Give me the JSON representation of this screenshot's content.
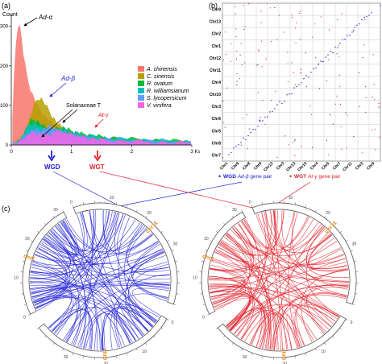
{
  "panels": {
    "a": "(a)",
    "b": "(b)",
    "c": "(c)"
  },
  "chart_data": [
    {
      "type": "area",
      "panel": "(a)",
      "ylabel": "Count",
      "xlabel": "Ks",
      "xlim": [
        0,
        3
      ],
      "ylim": [
        0,
        330
      ],
      "x_ticks": [
        0,
        1,
        2,
        3
      ],
      "y_ticks": [
        0,
        100,
        200,
        300
      ],
      "grid": false,
      "legend_position": "right",
      "x": [
        0.02,
        0.05,
        0.08,
        0.11,
        0.14,
        0.17,
        0.2,
        0.23,
        0.26,
        0.29,
        0.32,
        0.35,
        0.38,
        0.41,
        0.44,
        0.47,
        0.5,
        0.53,
        0.56,
        0.59,
        0.62,
        0.65,
        0.68,
        0.71,
        0.74,
        0.77,
        0.8,
        0.83,
        0.86,
        0.89,
        0.92,
        0.95,
        0.98,
        1.01,
        1.04,
        1.07,
        1.1,
        1.13,
        1.16,
        1.19,
        1.22,
        1.25,
        1.3,
        1.35,
        1.4,
        1.45,
        1.5,
        1.55,
        1.6,
        1.7,
        1.8,
        1.9,
        2.0,
        2.1,
        2.2,
        2.3,
        2.4,
        2.5,
        2.6,
        2.7,
        2.8,
        2.9,
        2.98
      ],
      "series": [
        {
          "name": "A. chinensis",
          "color": "#f8766d",
          "values": [
            60,
            180,
            260,
            300,
            300,
            270,
            230,
            200,
            175,
            155,
            140,
            128,
            118,
            108,
            98,
            90,
            84,
            78,
            72,
            67,
            63,
            59,
            56,
            53,
            50,
            47,
            45,
            42,
            40,
            38,
            36,
            34,
            33,
            31,
            30,
            29,
            28,
            27,
            26,
            25,
            24,
            23,
            22,
            21,
            20,
            19,
            18,
            17,
            16,
            15,
            14,
            13,
            12,
            11,
            10,
            9,
            9,
            8,
            8,
            7,
            7,
            6,
            6
          ]
        },
        {
          "name": "C. sinensis",
          "color": "#b79f00",
          "values": [
            2,
            4,
            6,
            9,
            12,
            17,
            24,
            34,
            46,
            60,
            74,
            88,
            100,
            110,
            116,
            118,
            116,
            110,
            104,
            96,
            88,
            80,
            73,
            66,
            60,
            55,
            50,
            46,
            42,
            39,
            36,
            34,
            32,
            30,
            29,
            28,
            27,
            26,
            25,
            24,
            23,
            22,
            21,
            20,
            19,
            18,
            17,
            16,
            15,
            14,
            13,
            12,
            11,
            10,
            10,
            9,
            9,
            8,
            8,
            7,
            7,
            6,
            6
          ]
        },
        {
          "name": "R. ovatum",
          "color": "#00ba38",
          "values": [
            2,
            3,
            5,
            8,
            12,
            18,
            26,
            36,
            46,
            54,
            60,
            63,
            64,
            63,
            60,
            56,
            52,
            48,
            45,
            43,
            41,
            40,
            40,
            40,
            41,
            42,
            43,
            44,
            44,
            43,
            41,
            39,
            37,
            35,
            33,
            32,
            31,
            30,
            29,
            28,
            27,
            26,
            25,
            24,
            23,
            22,
            21,
            20,
            19,
            18,
            17,
            16,
            15,
            14,
            14,
            13,
            12,
            12,
            11,
            10,
            10,
            9,
            9
          ]
        },
        {
          "name": "R. williamsianum",
          "color": "#00bfc4",
          "values": [
            2,
            3,
            5,
            8,
            12,
            18,
            26,
            34,
            42,
            48,
            52,
            54,
            54,
            52,
            49,
            46,
            43,
            41,
            39,
            38,
            37,
            37,
            37,
            38,
            39,
            40,
            40,
            40,
            39,
            38,
            36,
            34,
            33,
            32,
            31,
            30,
            29,
            28,
            27,
            26,
            25,
            24,
            23,
            22,
            21,
            20,
            19,
            18,
            17,
            16,
            15,
            14,
            14,
            13,
            12,
            12,
            11,
            11,
            10,
            10,
            9,
            9,
            8
          ]
        },
        {
          "name": "S. lycopersicum",
          "color": "#619cff",
          "values": [
            2,
            3,
            4,
            6,
            9,
            13,
            18,
            23,
            28,
            32,
            35,
            37,
            38,
            38,
            38,
            38,
            39,
            40,
            42,
            44,
            46,
            46,
            45,
            43,
            40,
            37,
            35,
            33,
            31,
            30,
            29,
            28,
            27,
            26,
            25,
            24,
            23,
            22,
            21,
            20,
            19,
            18,
            17,
            16,
            15,
            14,
            13,
            12,
            12,
            11,
            10,
            10,
            9,
            9,
            8,
            8,
            7,
            7,
            6,
            6,
            5,
            5,
            5
          ]
        },
        {
          "name": "V. vinifera",
          "color": "#f564e3",
          "values": [
            2,
            3,
            4,
            6,
            9,
            12,
            16,
            20,
            24,
            27,
            29,
            30,
            30,
            30,
            29,
            28,
            27,
            26,
            26,
            26,
            27,
            28,
            30,
            32,
            34,
            35,
            35,
            34,
            33,
            31,
            29,
            28,
            27,
            26,
            25,
            24,
            23,
            22,
            21,
            20,
            19,
            18,
            17,
            16,
            15,
            14,
            13,
            12,
            12,
            11,
            10,
            10,
            9,
            9,
            8,
            8,
            7,
            7,
            6,
            6,
            5,
            5,
            5
          ]
        }
      ],
      "annotations": [
        {
          "text": "Ad-α",
          "italic": true,
          "color": "#000000"
        },
        {
          "text": "Ad-β",
          "italic": true,
          "color": "#1f1fd6"
        },
        {
          "text": "Solanaceae T",
          "italic": false,
          "color": "#000000"
        },
        {
          "text": "At-γ",
          "italic": true,
          "color": "#e0232d"
        }
      ],
      "markers": [
        {
          "label": "WGD",
          "x": 0.9,
          "color": "#1f1fd6"
        },
        {
          "label": "WGT",
          "x": 1.5,
          "color": "#e0232d"
        }
      ]
    },
    {
      "type": "scatter",
      "panel": "(b)",
      "row_labels": [
        "Chr9",
        "Chr13",
        "Chr2",
        "Chr1",
        "Chr12",
        "Chr11",
        "Chr4",
        "Chr10",
        "Chr3",
        "Chr6",
        "Chr5",
        "Chr8",
        "Chr7"
      ],
      "col_labels": [
        "Chr1",
        "Chr6",
        "Chr8",
        "Chr9",
        "Chr12",
        "Chr3",
        "Chr13",
        "Chr10",
        "Chr4",
        "Chr5",
        "Chr7",
        "Chr11",
        "Chr2",
        "Chr9"
      ],
      "legend": [
        {
          "marker": "•",
          "bold": "WGD",
          "italic": "Ad-β",
          "text": " gene pair",
          "color": "#1f1fd6"
        },
        {
          "marker": "•",
          "bold": "WGT",
          "italic": "At-γ",
          "text": " gene pair",
          "color": "#e0232d"
        }
      ],
      "wgd_color": "#1f1fd6",
      "wgt_color": "#e0232d"
    },
    {
      "type": "circos",
      "panel": "(c)",
      "chromosomes": [
        "chr11",
        "chr6",
        "chr1"
      ],
      "label_color": "#f08a1c",
      "tick_labels": [
        "0",
        "10",
        "20",
        "30"
      ],
      "plots": [
        {
          "name": "WGD",
          "link_color": "#1f1fd6"
        },
        {
          "name": "WGT",
          "link_color": "#e0232d"
        }
      ]
    }
  ]
}
